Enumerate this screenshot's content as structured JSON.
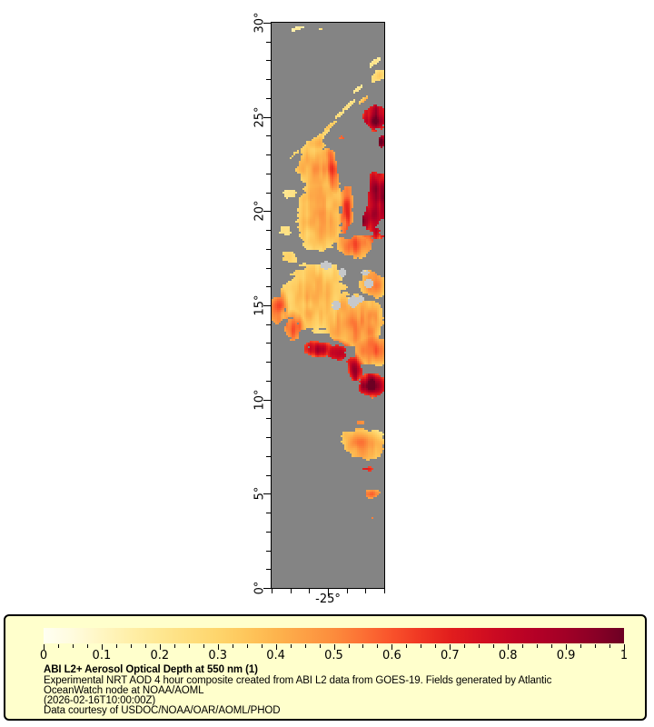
{
  "map": {
    "background_color": "#848484",
    "island_color": "#C6C8CA",
    "border_color": "#000000",
    "lon_range": [
      -28,
      -22
    ],
    "lat_range": [
      0,
      30
    ],
    "y_axis_labels": [
      {
        "lat": 0,
        "label": "0°"
      },
      {
        "lat": 5,
        "label": "5°"
      },
      {
        "lat": 10,
        "label": "10°"
      },
      {
        "lat": 15,
        "label": "15°"
      },
      {
        "lat": 20,
        "label": "20°"
      },
      {
        "lat": 25,
        "label": "25°"
      },
      {
        "lat": 30,
        "label": "30°"
      }
    ],
    "x_axis_labels": [
      {
        "lon": -25,
        "label": "-25°"
      }
    ],
    "blob_format": "[lat_deg, lon_deg, sigma_lon_deg, sigma_lat_deg, rotation_deg, aod_peak, coverage]",
    "aod_field_blobs": [
      [
        29.7,
        -26.6,
        0.35,
        0.09,
        20,
        0.2,
        0.9
      ],
      [
        29.65,
        -25.35,
        0.1,
        0.07,
        0,
        0.25,
        0.9
      ],
      [
        27.9,
        -22.5,
        0.45,
        0.12,
        40,
        0.22,
        0.85
      ],
      [
        27.2,
        -22.3,
        0.5,
        0.3,
        35,
        0.32,
        0.75
      ],
      [
        26.4,
        -23.5,
        0.5,
        0.1,
        40,
        0.22,
        0.7
      ],
      [
        25.9,
        -23.1,
        0.4,
        0.1,
        40,
        0.35,
        0.7
      ],
      [
        25.6,
        -23.9,
        0.55,
        0.11,
        40,
        0.28,
        0.7
      ],
      [
        25.1,
        -24.4,
        0.5,
        0.1,
        40,
        0.25,
        0.65
      ],
      [
        24.5,
        -24.9,
        0.6,
        0.12,
        40,
        0.33,
        0.7
      ],
      [
        24.0,
        -25.35,
        0.65,
        0.13,
        40,
        0.3,
        0.75
      ],
      [
        23.4,
        -26.1,
        0.55,
        0.12,
        40,
        0.25,
        0.6
      ],
      [
        23.0,
        -26.8,
        0.45,
        0.12,
        40,
        0.28,
        0.55
      ],
      [
        23.9,
        -24.25,
        0.45,
        0.28,
        0,
        0.6,
        0.35
      ],
      [
        25.0,
        -22.5,
        0.6,
        0.7,
        0,
        0.92,
        0.95
      ],
      [
        23.6,
        -22.15,
        0.25,
        0.65,
        0,
        0.88,
        0.5
      ],
      [
        23.5,
        -25.6,
        0.6,
        0.5,
        20,
        0.4,
        0.85
      ],
      [
        22.3,
        -25.55,
        1.0,
        1.3,
        10,
        0.45,
        1
      ],
      [
        22.7,
        -25.95,
        0.5,
        0.8,
        15,
        0.3,
        1
      ],
      [
        22.2,
        -24.75,
        0.3,
        1.1,
        5,
        0.6,
        0.9
      ],
      [
        20.0,
        -25.35,
        1.15,
        2.0,
        0,
        0.44,
        1
      ],
      [
        19.6,
        -25.95,
        0.7,
        1.5,
        0,
        0.3,
        1
      ],
      [
        20.0,
        -23.95,
        0.35,
        1.6,
        0,
        0.62,
        0.9
      ],
      [
        21.0,
        -27.0,
        0.75,
        0.5,
        0,
        0.22,
        0.45
      ],
      [
        19.0,
        -27.3,
        0.7,
        0.55,
        0,
        0.25,
        0.4
      ],
      [
        17.5,
        -27.05,
        0.65,
        0.5,
        0,
        0.3,
        0.5
      ],
      [
        20.4,
        -22.35,
        0.65,
        1.85,
        0,
        0.92,
        0.95
      ],
      [
        19.7,
        -23.0,
        0.5,
        0.8,
        0,
        0.9,
        0.85
      ],
      [
        15.4,
        -25.7,
        1.75,
        1.8,
        0,
        0.4,
        1
      ],
      [
        15.1,
        -25.9,
        1.05,
        1.05,
        0,
        0.28,
        1
      ],
      [
        18.2,
        -23.5,
        1.0,
        0.7,
        0,
        0.55,
        0.9
      ],
      [
        14.1,
        -23.5,
        1.5,
        1.4,
        0,
        0.5,
        1
      ],
      [
        16.2,
        -22.5,
        0.8,
        0.85,
        0,
        0.5,
        0.9
      ],
      [
        17.3,
        -22.3,
        0.4,
        0.65,
        0,
        0.6,
        0.5
      ],
      [
        14.8,
        -27.65,
        0.5,
        0.95,
        0,
        0.55,
        0.6
      ],
      [
        13.8,
        -26.85,
        0.5,
        0.75,
        0,
        0.6,
        0.7
      ],
      [
        12.7,
        -25.5,
        0.85,
        0.45,
        0,
        0.78,
        0.8
      ],
      [
        12.5,
        -24.5,
        0.6,
        0.5,
        0,
        0.85,
        0.75
      ],
      [
        12.6,
        -22.7,
        0.95,
        0.85,
        0,
        0.55,
        0.95
      ],
      [
        11.6,
        -23.55,
        0.4,
        0.7,
        15,
        0.9,
        0.85
      ],
      [
        10.75,
        -22.7,
        0.75,
        0.62,
        0,
        0.95,
        1
      ],
      [
        9.8,
        -25.85,
        0.7,
        0.33,
        0,
        0.7,
        0.32
      ],
      [
        8.8,
        -23.4,
        0.95,
        0.4,
        0,
        0.55,
        0.3
      ],
      [
        7.6,
        -23.2,
        1.15,
        0.75,
        -20,
        0.5,
        0.95
      ],
      [
        7.9,
        -22.5,
        0.55,
        0.45,
        0,
        0.36,
        0.9
      ],
      [
        6.3,
        -22.85,
        0.5,
        0.2,
        0,
        0.72,
        0.5
      ],
      [
        5.0,
        -22.65,
        0.45,
        0.28,
        0,
        0.55,
        0.75
      ],
      [
        4.0,
        -22.6,
        0.1,
        0.62,
        0,
        0.6,
        0.45
      ]
    ],
    "cut_format": "[lat_deg, lon_deg, sigma_lon_deg, sigma_lat_deg, rotation_deg, strength]",
    "aod_field_cuts": [
      [
        20.9,
        -23.25,
        0.32,
        1.7,
        0,
        1.1
      ],
      [
        22.7,
        -22.1,
        0.3,
        0.5,
        0,
        0.9
      ],
      [
        19.3,
        -22.15,
        0.22,
        0.3,
        0,
        0.8
      ],
      [
        17.2,
        -22.25,
        0.45,
        0.75,
        0,
        0.7
      ],
      [
        18.8,
        -23.85,
        0.25,
        0.5,
        0,
        0.5
      ]
    ],
    "island_format": "[cell_x, cell_y, radius_x, radius_y]",
    "islands": [
      [
        29.5,
        133,
        2.8,
        2.2
      ],
      [
        38.5,
        137,
        2.2,
        2.2
      ],
      [
        51,
        137,
        2.2,
        1.6
      ],
      [
        53,
        143,
        2.2,
        2.2
      ],
      [
        44.5,
        153,
        2.8,
        3.2
      ],
      [
        48.5,
        151.5,
        1.8,
        1.7
      ],
      [
        35,
        155,
        2.4,
        2.2
      ]
    ],
    "island_dots": [
      [
        42,
        151
      ],
      [
        33,
        155
      ],
      [
        51,
        136
      ]
    ],
    "island_dot_color": "#FFE089"
  },
  "legend": {
    "background_color": "#FFFFCC",
    "colorbar": {
      "stops": [
        [
          0.0,
          "#FFFFF2"
        ],
        [
          0.05,
          "#FFFBDE"
        ],
        [
          0.1,
          "#FFF6C2"
        ],
        [
          0.15,
          "#FFEFA8"
        ],
        [
          0.2,
          "#FEE791"
        ],
        [
          0.25,
          "#FEDE7E"
        ],
        [
          0.3,
          "#FED56C"
        ],
        [
          0.35,
          "#FEC65B"
        ],
        [
          0.4,
          "#FDB44D"
        ],
        [
          0.45,
          "#FDA045"
        ],
        [
          0.5,
          "#FC8C3C"
        ],
        [
          0.55,
          "#FC7034"
        ],
        [
          0.6,
          "#F9522B"
        ],
        [
          0.65,
          "#EF3623"
        ],
        [
          0.7,
          "#E21E1D"
        ],
        [
          0.75,
          "#D41020"
        ],
        [
          0.8,
          "#C40623"
        ],
        [
          0.85,
          "#B30026"
        ],
        [
          0.9,
          "#A10026"
        ],
        [
          0.95,
          "#8A0026"
        ],
        [
          1.0,
          "#6C0023"
        ]
      ],
      "tick_labels": [
        "0",
        "0.1",
        "0.2",
        "0.3",
        "0.4",
        "0.5",
        "0.6",
        "0.7",
        "0.8",
        "0.9",
        "1"
      ],
      "minor_ticks_per_major": 4
    },
    "title": "ABI L2+ Aerosol Optical Depth at 550 nm (1)",
    "lines": [
      "Experimental NRT AOD 4 hour composite created from ABI L2 data from GOES-19. Fields generated by Atlantic",
      "OceanWatch node at NOAA/AOML",
      "(2026-02-16T10:00:00Z)",
      "Data courtesy of USDOC/NOAA/OAR/AOML/PHOD"
    ]
  }
}
